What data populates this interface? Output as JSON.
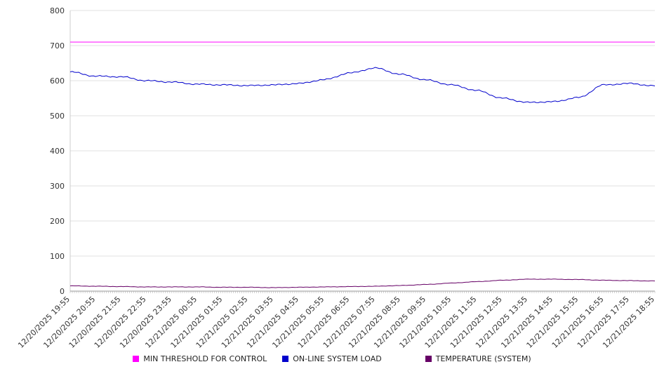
{
  "chart_data": {
    "type": "line",
    "title": "",
    "xlabel": "",
    "ylabel": "",
    "ylim": [
      0,
      800
    ],
    "y_ticks": [
      0,
      100,
      200,
      300,
      400,
      500,
      600,
      700,
      800
    ],
    "grid": true,
    "legend_position": "bottom",
    "x_labels": [
      "12/20/2025 19:55",
      "12/20/2025 20:55",
      "12/20/2025 21:55",
      "12/20/2025 22:55",
      "12/20/2025 23:55",
      "12/21/2025 00:55",
      "12/21/2025 01:55",
      "12/21/2025 02:55",
      "12/21/2025 03:55",
      "12/21/2025 04:55",
      "12/21/2025 05:55",
      "12/21/2025 06:55",
      "12/21/2025 07:55",
      "12/21/2025 08:55",
      "12/21/2025 09:55",
      "12/21/2025 10:55",
      "12/21/2025 11:55",
      "12/21/2025 12:55",
      "12/21/2025 13:55",
      "12/21/2025 14:55",
      "12/21/2025 15:55",
      "12/21/2025 16:55",
      "12/21/2025 17:55",
      "12/21/2025 18:55"
    ],
    "series": [
      {
        "name": "MIN THRESHOLD FOR CONTROL",
        "color": "#ff00ff",
        "values": [
          710,
          710,
          710,
          710,
          710,
          710,
          710,
          710,
          710,
          710,
          710,
          710,
          710,
          710,
          710,
          710,
          710,
          710,
          710,
          710,
          710,
          710,
          710,
          710
        ]
      },
      {
        "name": "ON-LINE SYSTEM LOAD",
        "color": "#0000cc",
        "values": [
          625,
          613,
          611,
          600,
          596,
          590,
          588,
          586,
          588,
          592,
          603,
          622,
          636,
          618,
          602,
          588,
          572,
          550,
          538,
          540,
          552,
          588,
          592,
          585
        ]
      },
      {
        "name": "TEMPERATURE (SYSTEM)",
        "color": "#660066",
        "values": [
          15,
          14,
          13,
          12,
          12,
          12,
          11,
          11,
          10,
          11,
          12,
          13,
          14,
          16,
          19,
          23,
          27,
          31,
          34,
          34,
          33,
          31,
          30,
          29
        ]
      }
    ],
    "colors": {
      "grid": "#e2e2e2",
      "axis": "#999999",
      "y_axis": "#cccccc",
      "tick": "#aaaaaa",
      "label_text": "#333333"
    }
  }
}
